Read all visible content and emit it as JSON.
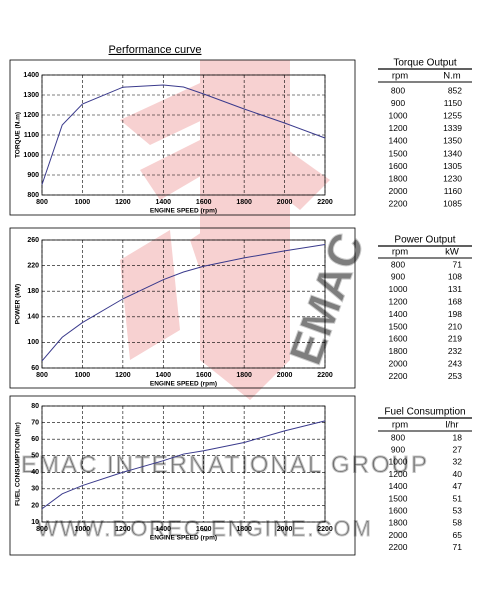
{
  "header": {
    "title": "Performance curve"
  },
  "chart_data": [
    {
      "type": "line",
      "y_label": "TORQUE (N.m)",
      "x_label": "ENGINE SPEED (rpm)",
      "x": [
        800,
        900,
        1000,
        1200,
        1400,
        1500,
        1600,
        1800,
        2000,
        2200
      ],
      "values": [
        852,
        1150,
        1255,
        1339,
        1350,
        1340,
        1305,
        1230,
        1160,
        1085
      ],
      "color": "#3a3a8c",
      "xlim": [
        800,
        2200
      ],
      "ylim": [
        800,
        1400
      ],
      "xticks": [
        800,
        1000,
        1200,
        1400,
        1600,
        1800,
        2000,
        2200
      ],
      "yticks": [
        800,
        900,
        1000,
        1100,
        1200,
        1300,
        1400
      ],
      "grid": true
    },
    {
      "type": "line",
      "y_label": "POWER (kW)",
      "x_label": "ENGINE SPEED (rpm)",
      "x": [
        800,
        900,
        1000,
        1200,
        1400,
        1500,
        1600,
        1800,
        2000,
        2200
      ],
      "values": [
        71,
        108,
        131,
        168,
        198,
        210,
        219,
        232,
        243,
        253
      ],
      "color": "#3a3a8c",
      "xlim": [
        800,
        2200
      ],
      "ylim": [
        60,
        260
      ],
      "xticks": [
        800,
        1000,
        1200,
        1400,
        1600,
        1800,
        2000,
        2200
      ],
      "yticks": [
        60,
        100,
        140,
        180,
        220,
        260
      ],
      "grid": true
    },
    {
      "type": "line",
      "y_label": "FUEL CONSUMPTION (l/hr)",
      "x_label": "ENGINE SPEED (rpm)",
      "x": [
        800,
        900,
        1000,
        1200,
        1400,
        1500,
        1600,
        1800,
        2000,
        2200
      ],
      "values": [
        18,
        27,
        32,
        40,
        47,
        51,
        53,
        58,
        65,
        71
      ],
      "color": "#3a3a8c",
      "xlim": [
        800,
        2200
      ],
      "ylim": [
        10,
        80
      ],
      "xticks": [
        800,
        1000,
        1200,
        1400,
        1600,
        1800,
        2000,
        2200
      ],
      "yticks": [
        10,
        20,
        30,
        40,
        50,
        60,
        70,
        80
      ],
      "grid": true
    }
  ],
  "tables": [
    {
      "title": "Torque Output",
      "columns": [
        "rpm",
        "N.m"
      ],
      "rows": [
        [
          800,
          852
        ],
        [
          900,
          1150
        ],
        [
          1000,
          1255
        ],
        [
          1200,
          1339
        ],
        [
          1400,
          1350
        ],
        [
          1500,
          1340
        ],
        [
          1600,
          1305
        ],
        [
          1800,
          1230
        ],
        [
          2000,
          1160
        ],
        [
          2200,
          1085
        ]
      ]
    },
    {
      "title": "Power Output",
      "columns": [
        "rpm",
        "kW"
      ],
      "rows": [
        [
          800,
          71
        ],
        [
          900,
          108
        ],
        [
          1000,
          131
        ],
        [
          1200,
          168
        ],
        [
          1400,
          198
        ],
        [
          1500,
          210
        ],
        [
          1600,
          219
        ],
        [
          1800,
          232
        ],
        [
          2000,
          243
        ],
        [
          2200,
          253
        ]
      ]
    },
    {
      "title": "Fuel Consumption",
      "columns": [
        "rpm",
        "l/hr"
      ],
      "rows": [
        [
          800,
          18
        ],
        [
          900,
          27
        ],
        [
          1000,
          32
        ],
        [
          1200,
          40
        ],
        [
          1400,
          47
        ],
        [
          1500,
          51
        ],
        [
          1600,
          53
        ],
        [
          1800,
          58
        ],
        [
          2000,
          65
        ],
        [
          2200,
          71
        ]
      ]
    }
  ],
  "watermark": {
    "line1": "EMAC INTERNATIONAL GROUP",
    "line2": "WWW.DOREC-ENGINE.COM",
    "logo": "EMAC"
  }
}
